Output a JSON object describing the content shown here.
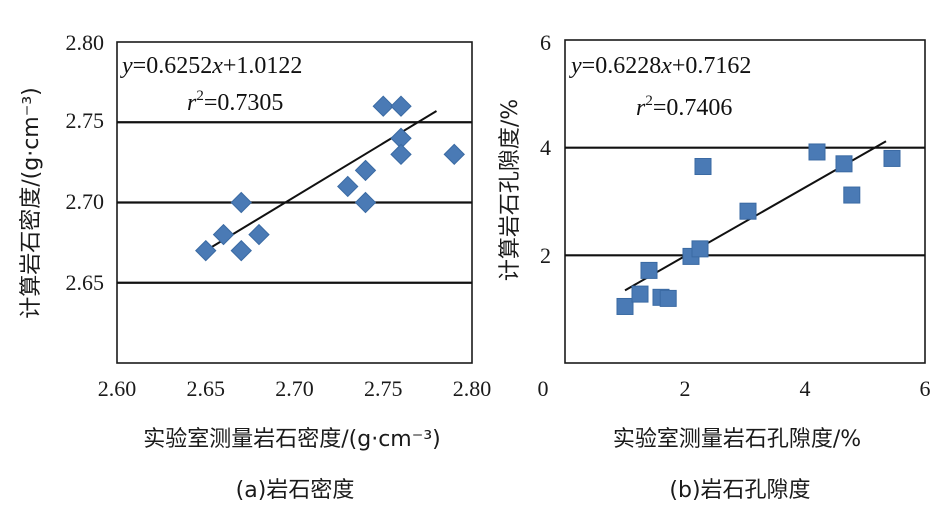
{
  "chart_data": [
    {
      "type": "scatter",
      "title": "",
      "caption": "(a)岩石密度",
      "xlabel": "实验室测量岩石密度/(g·cm⁻³)",
      "ylabel": "计算岩石密度/(g·cm⁻³)",
      "xlim": [
        2.6,
        2.8
      ],
      "ylim": [
        2.6,
        2.8
      ],
      "x_ticks": [
        "2.60",
        "2.65",
        "2.70",
        "2.75",
        "2.80"
      ],
      "y_ticks": [
        "2.65",
        "2.70",
        "2.75",
        "2.80"
      ],
      "gridlines_y": [
        2.65,
        2.7,
        2.75
      ],
      "marker": "diamond",
      "marker_color": "#4a7ab5",
      "points": [
        {
          "x": 2.65,
          "y": 2.67
        },
        {
          "x": 2.66,
          "y": 2.68
        },
        {
          "x": 2.67,
          "y": 2.7
        },
        {
          "x": 2.67,
          "y": 2.67
        },
        {
          "x": 2.68,
          "y": 2.68
        },
        {
          "x": 2.73,
          "y": 2.71
        },
        {
          "x": 2.74,
          "y": 2.72
        },
        {
          "x": 2.74,
          "y": 2.7
        },
        {
          "x": 2.75,
          "y": 2.76
        },
        {
          "x": 2.76,
          "y": 2.76
        },
        {
          "x": 2.76,
          "y": 2.74
        },
        {
          "x": 2.76,
          "y": 2.73
        },
        {
          "x": 2.79,
          "y": 2.73
        }
      ],
      "fit": {
        "x_start": 2.65,
        "y_start": 2.67,
        "x_end": 2.78,
        "y_end": 2.757
      },
      "equation_parts": {
        "y": "y",
        "rhs_1": "=0.6252",
        "x": "x",
        "rhs_2": "+1.0122"
      },
      "r2_parts": {
        "r": "r",
        "sup": "2",
        "value": "=0.7305"
      }
    },
    {
      "type": "scatter",
      "title": "",
      "caption": "(b)岩石孔隙度",
      "xlabel": "实验室测量岩石孔隙度/%",
      "ylabel": "计算岩石孔隙度/%",
      "xlim": [
        0,
        6
      ],
      "ylim": [
        0,
        6
      ],
      "x_ticks": [
        "0",
        "2",
        "4",
        "6"
      ],
      "y_ticks": [
        "2",
        "4",
        "6"
      ],
      "gridlines_y": [
        2,
        4
      ],
      "marker": "square",
      "marker_color": "#4a7ab5",
      "points": [
        {
          "x": 1.0,
          "y": 1.05
        },
        {
          "x": 1.25,
          "y": 1.28
        },
        {
          "x": 1.4,
          "y": 1.72
        },
        {
          "x": 1.6,
          "y": 1.22
        },
        {
          "x": 1.72,
          "y": 1.2
        },
        {
          "x": 2.1,
          "y": 1.98
        },
        {
          "x": 2.25,
          "y": 2.12
        },
        {
          "x": 2.3,
          "y": 3.65
        },
        {
          "x": 3.05,
          "y": 2.82
        },
        {
          "x": 4.2,
          "y": 3.92
        },
        {
          "x": 4.65,
          "y": 3.7
        },
        {
          "x": 4.78,
          "y": 3.12
        },
        {
          "x": 5.45,
          "y": 3.8
        }
      ],
      "fit": {
        "x_start": 1.0,
        "y_start": 1.35,
        "x_end": 5.35,
        "y_end": 4.12
      },
      "equation_parts": {
        "y": "y",
        "rhs_1": "=0.6228",
        "x": "x",
        "rhs_2": "+0.7162"
      },
      "r2_parts": {
        "r": "r",
        "sup": "2",
        "value": "=0.7406"
      }
    }
  ]
}
